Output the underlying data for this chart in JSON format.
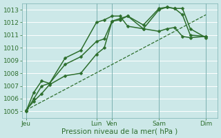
{
  "bg_color": "#cce8e8",
  "grid_color": "#aad4d4",
  "line_color": "#2d6e2d",
  "ylim": [
    1004.5,
    1013.5
  ],
  "yticks": [
    1005,
    1006,
    1007,
    1008,
    1009,
    1010,
    1011,
    1012,
    1013
  ],
  "xlabel": "Pression niveau de la mer( hPa )",
  "xtick_labels": [
    "Jeu",
    "Lun",
    "Ven",
    "Sam",
    "Dim"
  ],
  "xtick_positions": [
    0,
    9,
    11,
    17,
    23
  ],
  "xlim": [
    -0.5,
    24.5
  ],
  "vline_x": [
    0,
    9,
    11,
    17,
    23
  ],
  "series": [
    {
      "x": [
        0,
        23
      ],
      "y": [
        1005.1,
        1012.6
      ],
      "marker": false,
      "linewidth": 0.9,
      "linestyle": "--",
      "markersize": 0
    },
    {
      "x": [
        0,
        1,
        2,
        3,
        5,
        7,
        9,
        10,
        11,
        12,
        13,
        15,
        17,
        18,
        19,
        20,
        21,
        23
      ],
      "y": [
        1005.1,
        1005.8,
        1006.4,
        1007.1,
        1007.8,
        1008.0,
        1009.5,
        1010.0,
        1012.1,
        1012.2,
        1012.5,
        1011.8,
        1013.1,
        1013.2,
        1013.1,
        1012.6,
        1011.0,
        1010.9
      ],
      "marker": true,
      "linewidth": 1.1,
      "linestyle": "-",
      "markersize": 2.5
    },
    {
      "x": [
        0,
        1,
        2,
        3,
        5,
        7,
        9,
        10,
        11,
        12,
        13,
        15,
        17,
        18,
        19,
        20,
        21,
        23
      ],
      "y": [
        1005.0,
        1006.5,
        1007.4,
        1007.2,
        1009.2,
        1009.8,
        1012.0,
        1012.2,
        1012.5,
        1012.5,
        1011.7,
        1011.5,
        1013.0,
        1013.2,
        1013.1,
        1013.1,
        1011.5,
        1010.8
      ],
      "marker": true,
      "linewidth": 1.1,
      "linestyle": "-",
      "markersize": 2.5
    },
    {
      "x": [
        0,
        1,
        2,
        3,
        5,
        7,
        9,
        10,
        11,
        12,
        13,
        15,
        17,
        18,
        19,
        20,
        21,
        23
      ],
      "y": [
        1005.0,
        1006.0,
        1007.0,
        1007.2,
        1008.7,
        1009.3,
        1010.5,
        1010.7,
        1012.1,
        1012.3,
        1012.5,
        1011.5,
        1011.3,
        1011.5,
        1011.6,
        1010.9,
        1010.8,
        1010.9
      ],
      "marker": true,
      "linewidth": 1.1,
      "linestyle": "-",
      "markersize": 2.5
    }
  ],
  "tick_fontsize": 6.5,
  "label_fontsize": 7.5
}
